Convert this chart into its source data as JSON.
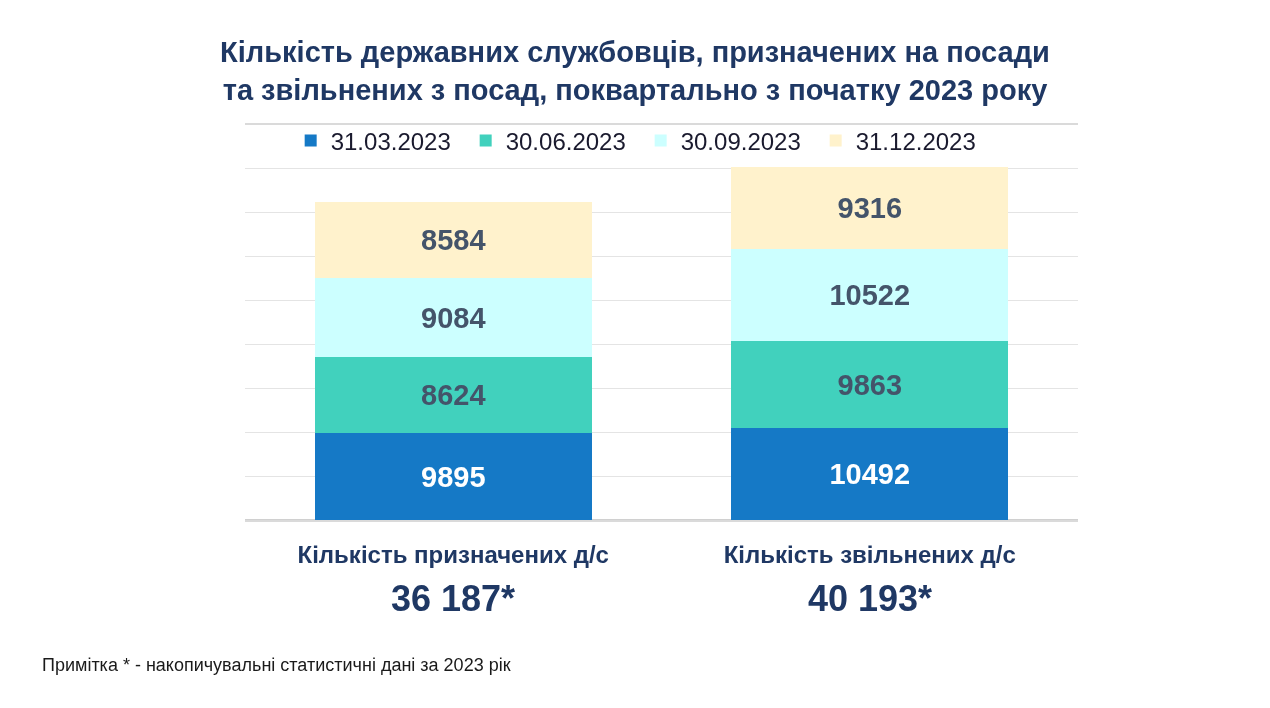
{
  "chart_data": {
    "type": "bar",
    "title": "Кількість державних службовців, призначених на посади\nта звільнених з посад, поквартально з початку 2023 року",
    "categories": [
      "Кількість призначених д/с",
      "Кількість звільнених д/с"
    ],
    "series": [
      {
        "name": "31.03.2023",
        "color": "#1579c6",
        "values": [
          9895,
          10492
        ]
      },
      {
        "name": "30.06.2023",
        "color": "#41d1bd",
        "values": [
          8624,
          9863
        ]
      },
      {
        "name": "30.09.2023",
        "color": "#ccffff",
        "values": [
          9084,
          10522
        ]
      },
      {
        "name": "31.12.2023",
        "color": "#fff2cc",
        "values": [
          8584,
          9316
        ]
      }
    ],
    "stacked": true,
    "ylim": [
      0,
      45000
    ],
    "yticks": [
      {
        "value": 0,
        "label": null
      },
      {
        "value": 5000,
        "label": null
      },
      {
        "value": 10000,
        "label": null
      },
      {
        "value": 15000,
        "label": null
      },
      {
        "value": 20000,
        "label": null
      },
      {
        "value": 25000,
        "label": null
      },
      {
        "value": 30000,
        "label": null
      },
      {
        "value": 35000,
        "label": null
      },
      {
        "value": 40000,
        "label": null
      },
      {
        "value": 45000,
        "label": null
      }
    ],
    "tick_labels": "x",
    "grid": "y",
    "legend": "top",
    "data_labels": true,
    "totals": [
      "36 187*",
      "40 193*"
    ],
    "annotations": [
      "Примітка * - накопичувальні статистичні дані за 2023 рік"
    ]
  }
}
